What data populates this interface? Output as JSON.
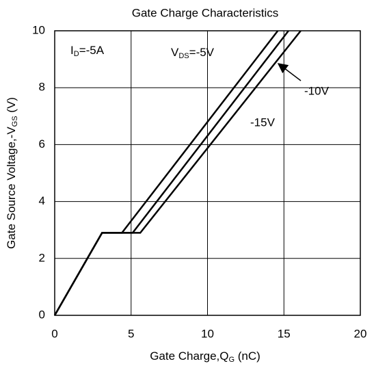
{
  "chart_data": {
    "type": "line",
    "title": "Gate Charge Characteristics",
    "x_label": {
      "text": "Gate Charge,Q",
      "sub": "G",
      "rest": " (nC)"
    },
    "y_label": {
      "text": "Gate Source Voltage,-V",
      "sub": "GS",
      "rest": " (V)"
    },
    "annotations": [
      {
        "text": "I",
        "sub": "D",
        "rest": "=-5A"
      },
      {
        "text": "V",
        "sub": "DS",
        "rest": "="
      }
    ],
    "series": [
      {
        "name": "-5V",
        "color": "#000000",
        "x": [
          0,
          3.1,
          4.4,
          14.6
        ],
        "values": [
          0,
          2.9,
          2.9,
          10
        ]
      },
      {
        "name": "-10V",
        "color": "#000000",
        "x": [
          0,
          3.1,
          5.1,
          15.3
        ],
        "values": [
          0,
          2.9,
          2.9,
          10
        ]
      },
      {
        "name": "-15V",
        "color": "#000000",
        "x": [
          0,
          3.1,
          5.6,
          16.1
        ],
        "values": [
          0,
          2.9,
          2.9,
          10
        ]
      }
    ],
    "xlim": [
      0,
      20
    ],
    "xticks": [
      0,
      5,
      10,
      15,
      20
    ],
    "ylim": [
      0,
      10
    ],
    "yticks": [
      0,
      2,
      4,
      6,
      8,
      10
    ],
    "grid": true
  }
}
